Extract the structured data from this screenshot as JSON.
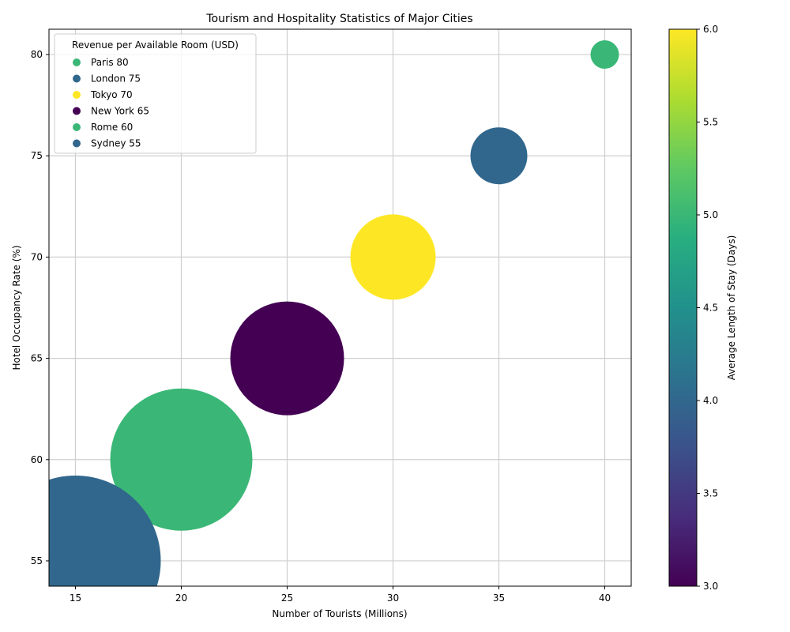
{
  "chart_data": {
    "type": "scatter",
    "title": "Tourism and Hospitality Statistics of Major Cities",
    "xlabel": "Number of Tourists (Millions)",
    "ylabel": "Hotel Occupancy Rate (%)",
    "xlim": [
      13.75,
      41.25
    ],
    "ylim": [
      53.75,
      81.25
    ],
    "xticks": [
      15,
      20,
      25,
      30,
      35,
      40
    ],
    "yticks": [
      55,
      60,
      65,
      70,
      75,
      80
    ],
    "grid": true,
    "legend": {
      "title": "Revenue per Available Room (USD)",
      "placement": "upper-left",
      "entries": [
        "Paris 80",
        "London 75",
        "Tokyo 70",
        "New York 65",
        "Rome 60",
        "Sydney 55"
      ]
    },
    "colorbar": {
      "label": "Average Length of Stay (Days)",
      "colormap": "viridis",
      "range": [
        3.0,
        6.0
      ],
      "ticks": [
        "3.0",
        "3.5",
        "4.0",
        "4.5",
        "5.0",
        "5.5",
        "6.0"
      ]
    },
    "points": [
      {
        "city": "Paris",
        "tourists": 40,
        "occupancy": 80,
        "revpar": 80,
        "stay_days": 5
      },
      {
        "city": "London",
        "tourists": 35,
        "occupancy": 75,
        "revpar": 75,
        "stay_days": 4
      },
      {
        "city": "Tokyo",
        "tourists": 30,
        "occupancy": 70,
        "revpar": 70,
        "stay_days": 6
      },
      {
        "city": "New York",
        "tourists": 25,
        "occupancy": 65,
        "revpar": 65,
        "stay_days": 3
      },
      {
        "city": "Rome",
        "tourists": 20,
        "occupancy": 60,
        "revpar": 60,
        "stay_days": 5
      },
      {
        "city": "Sydney",
        "tourists": 15,
        "occupancy": 55,
        "revpar": 55,
        "stay_days": 4
      }
    ]
  }
}
